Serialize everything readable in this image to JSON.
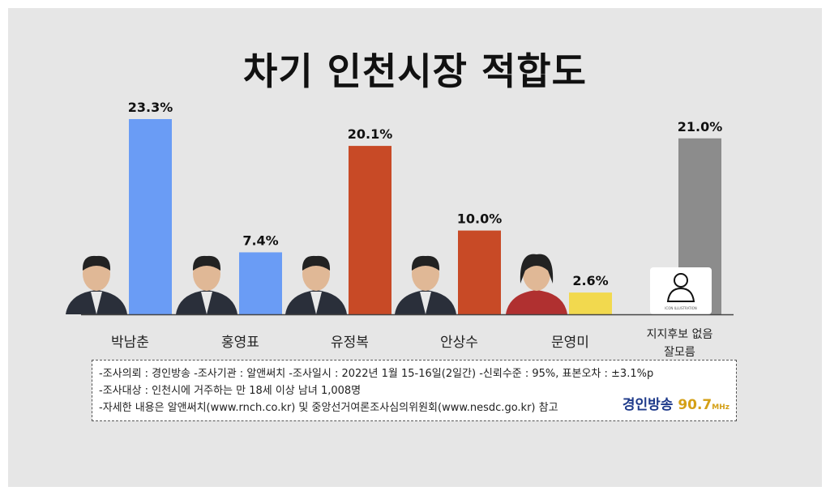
{
  "chart_data": {
    "type": "bar",
    "title": "차기 인천시장 적합도",
    "categories": [
      "박남춘",
      "홍영표",
      "유정복",
      "안상수",
      "문영미",
      "지지후보 없음 잘모름"
    ],
    "category_lines": [
      [
        "박남춘"
      ],
      [
        "홍영표"
      ],
      [
        "유정복"
      ],
      [
        "안상수"
      ],
      [
        "문영미"
      ],
      [
        "지지후보 없음",
        "잘모름"
      ]
    ],
    "values": [
      23.3,
      7.4,
      20.1,
      10.0,
      2.6,
      21.0
    ],
    "value_labels": [
      "23.3%",
      "7.4%",
      "20.1%",
      "10.0%",
      "2.6%",
      "21.0%"
    ],
    "colors": [
      "#6a9cf5",
      "#6a9cf5",
      "#c84a26",
      "#c84a26",
      "#f2d94e",
      "#8c8c8c"
    ],
    "ylim": [
      0,
      23.3
    ],
    "grid": false,
    "legend": "none"
  },
  "photo_icons": [
    "person-photo",
    "person-photo",
    "person-photo",
    "person-photo",
    "person-photo",
    "user-outline-icon"
  ],
  "icon_caption": "ICON ILLUSTRATION",
  "info": {
    "lines": [
      "-조사의뢰 : 경인방송  -조사기관 : 알앤써치  -조사일시 : 2022년 1월 15-16일(2일간) -신뢰수준 : 95%, 표본오차 : ±3.1%p",
      "-조사대상 : 인천시에 거주하는 만 18세 이상 남녀 1,008명",
      "-자세한 내용은 알앤써치(www.rnch.co.kr) 및 중앙선거여론조사심의위원회(www.nesdc.go.kr) 참고"
    ],
    "brand_name": "경인방송",
    "brand_number": "90.7",
    "brand_unit": "MHz"
  }
}
